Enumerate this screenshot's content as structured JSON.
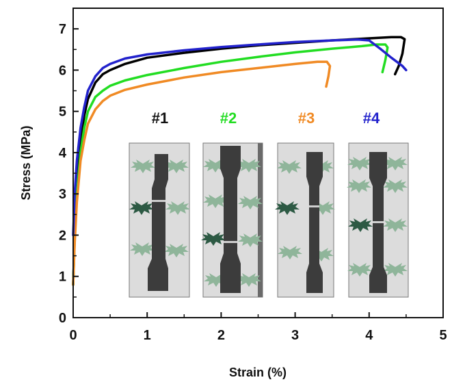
{
  "chart_data": {
    "type": "line",
    "title": "",
    "xlabel": "Strain (%)",
    "ylabel": "Stress (MPa)",
    "xlim": [
      0,
      5
    ],
    "ylim": [
      0,
      7.5
    ],
    "xticks": [
      "0",
      "1",
      "2",
      "3",
      "4",
      "5"
    ],
    "yticks": [
      "0",
      "1",
      "2",
      "3",
      "4",
      "5",
      "6",
      "7"
    ],
    "grid": false,
    "series": [
      {
        "name": "#1",
        "color": "#000000",
        "x": [
          0,
          0.02,
          0.05,
          0.1,
          0.15,
          0.2,
          0.3,
          0.4,
          0.5,
          0.7,
          1.0,
          1.5,
          2.0,
          2.5,
          3.0,
          3.5,
          4.0,
          4.3,
          4.43,
          4.48,
          4.45,
          4.4,
          4.35
        ],
        "y": [
          0.8,
          2.0,
          3.2,
          4.3,
          4.9,
          5.3,
          5.7,
          5.9,
          6.0,
          6.15,
          6.3,
          6.42,
          6.52,
          6.6,
          6.66,
          6.72,
          6.77,
          6.8,
          6.8,
          6.75,
          6.4,
          6.1,
          5.9
        ]
      },
      {
        "name": "#2",
        "color": "#22dd22",
        "x": [
          0,
          0.02,
          0.05,
          0.1,
          0.15,
          0.2,
          0.3,
          0.4,
          0.5,
          0.7,
          1.0,
          1.5,
          2.0,
          2.5,
          3.0,
          3.5,
          3.9,
          4.1,
          4.22,
          4.25,
          4.22,
          4.18
        ],
        "y": [
          0.8,
          1.9,
          3.0,
          4.0,
          4.6,
          5.0,
          5.35,
          5.5,
          5.62,
          5.75,
          5.88,
          6.05,
          6.2,
          6.32,
          6.43,
          6.52,
          6.58,
          6.62,
          6.62,
          6.55,
          6.25,
          5.95
        ]
      },
      {
        "name": "#3",
        "color": "#f08a24",
        "x": [
          0,
          0.02,
          0.05,
          0.1,
          0.15,
          0.2,
          0.3,
          0.4,
          0.5,
          0.7,
          1.0,
          1.5,
          2.0,
          2.5,
          3.0,
          3.3,
          3.43,
          3.47,
          3.45,
          3.42
        ],
        "y": [
          0.8,
          1.8,
          2.8,
          3.8,
          4.3,
          4.7,
          5.05,
          5.25,
          5.38,
          5.52,
          5.65,
          5.82,
          5.95,
          6.05,
          6.15,
          6.2,
          6.2,
          6.1,
          5.85,
          5.6
        ]
      },
      {
        "name": "#4",
        "color": "#2222cc",
        "x": [
          0,
          0.02,
          0.05,
          0.1,
          0.15,
          0.2,
          0.3,
          0.4,
          0.5,
          0.7,
          1.0,
          1.5,
          2.0,
          2.5,
          3.0,
          3.5,
          3.85,
          4.0,
          4.15,
          4.3,
          4.45,
          4.5
        ],
        "y": [
          2.0,
          3.0,
          3.8,
          4.6,
          5.1,
          5.5,
          5.85,
          6.05,
          6.15,
          6.28,
          6.38,
          6.48,
          6.56,
          6.62,
          6.68,
          6.72,
          6.74,
          6.72,
          6.52,
          6.3,
          6.1,
          6.0
        ]
      }
    ],
    "inset_labels": [
      {
        "text": "#1",
        "color": "#111111"
      },
      {
        "text": "#2",
        "color": "#22dd22"
      },
      {
        "text": "#3",
        "color": "#f08a24"
      },
      {
        "text": "#4",
        "color": "#2222cc"
      }
    ]
  }
}
